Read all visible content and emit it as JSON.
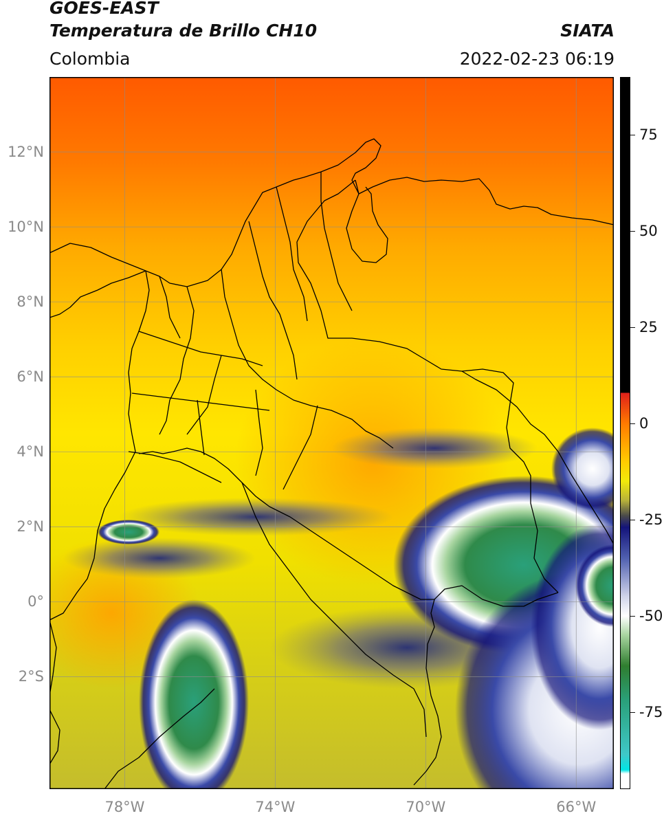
{
  "header": {
    "title_line1": "GOES-EAST",
    "title_line2": "Temperatura de Brillo CH10",
    "region": "Colombia",
    "organization": "SIATA",
    "timestamp": "2022-02-23 06:19"
  },
  "map": {
    "lat_ticks": [
      {
        "lat": 12,
        "label": "12°N"
      },
      {
        "lat": 10,
        "label": "10°N"
      },
      {
        "lat": 8,
        "label": "8°N"
      },
      {
        "lat": 6,
        "label": "6°N"
      },
      {
        "lat": 4,
        "label": "4°N"
      },
      {
        "lat": 2,
        "label": "2°N"
      },
      {
        "lat": 0,
        "label": "0°"
      },
      {
        "lat": -2,
        "label": "2°S"
      }
    ],
    "lon_ticks": [
      {
        "lon": -78,
        "label": "78°W"
      },
      {
        "lon": -74,
        "label": "74°W"
      },
      {
        "lon": -70,
        "label": "70°W"
      },
      {
        "lon": -66,
        "label": "66°W"
      }
    ],
    "extent": {
      "lon_min": -80,
      "lon_max": -65,
      "lat_min": -5,
      "lat_max": 14
    },
    "colors": {
      "warm_top": "#ff6a00",
      "orange": "#ffa500",
      "yellow": "#ffe600",
      "olive": "#c7c22a",
      "cloud_blue": "#1a237e",
      "cloud_white": "#f2f2f2",
      "cold_green": "#2e8b57",
      "cold_teal": "#3fb39b",
      "border": "#000000",
      "grid": "#8c8c8c"
    }
  },
  "colorbar": {
    "range": [
      -95,
      90
    ],
    "ticks": [
      {
        "value": 75,
        "label": "75"
      },
      {
        "value": 50,
        "label": "50"
      },
      {
        "value": 25,
        "label": "25"
      },
      {
        "value": 0,
        "label": "0"
      },
      {
        "value": -25,
        "label": "-25"
      },
      {
        "value": -50,
        "label": "-50"
      },
      {
        "value": -75,
        "label": "-75"
      }
    ],
    "stops": [
      {
        "value": 90,
        "color": "#000000"
      },
      {
        "value": 8,
        "color": "#000000"
      },
      {
        "value": 7.9,
        "color": "#e0201a"
      },
      {
        "value": 0,
        "color": "#ff7a00"
      },
      {
        "value": -10,
        "color": "#ffcc00"
      },
      {
        "value": -15,
        "color": "#f2ea0a"
      },
      {
        "value": -20,
        "color": "#b8b23a"
      },
      {
        "value": -24,
        "color": "#4a4a4a"
      },
      {
        "value": -27,
        "color": "#14147a"
      },
      {
        "value": -35,
        "color": "#5060b0"
      },
      {
        "value": -45,
        "color": "#d0d4ea"
      },
      {
        "value": -50,
        "color": "#ffffff"
      },
      {
        "value": -55,
        "color": "#a8d5a0"
      },
      {
        "value": -63,
        "color": "#2f7d2f"
      },
      {
        "value": -72,
        "color": "#2aa07a"
      },
      {
        "value": -86,
        "color": "#3fc8c8"
      },
      {
        "value": -90,
        "color": "#00e5e5"
      },
      {
        "value": -91,
        "color": "#ffffff"
      },
      {
        "value": -95,
        "color": "#ffffff"
      }
    ]
  }
}
